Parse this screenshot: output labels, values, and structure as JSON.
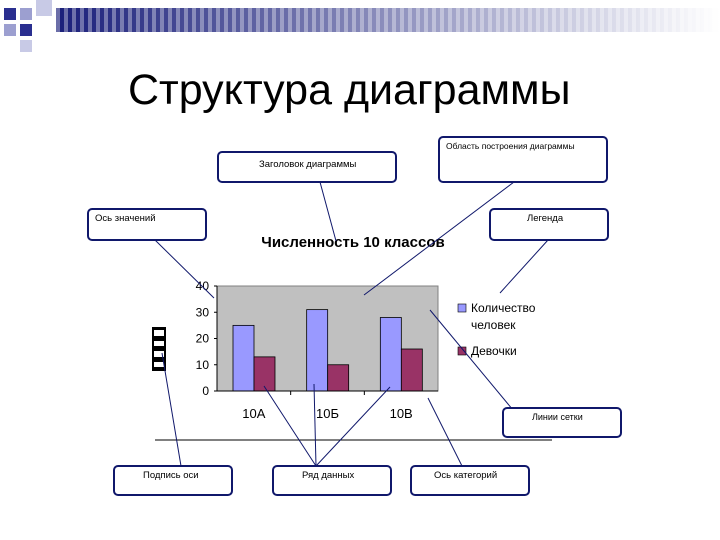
{
  "slide": {
    "title": "Структура диаграммы",
    "callouts": {
      "chart_title": "Заголовок диаграммы",
      "plot_area": "Область построения диаграммы",
      "value_axis": "Ось значений",
      "legend": "Легенда",
      "gridlines": "Линии сетки",
      "axis_title": "Подпись оси",
      "data_series": "Ряд данных",
      "category_axis": "Ось категорий"
    },
    "colors": {
      "accent_blue": "#10186b",
      "series_1": "#9999ff",
      "series_2": "#993366",
      "plot_area": "#c0c0c0"
    }
  },
  "chart_data": {
    "type": "bar",
    "title": "Численность 10 классов",
    "categories": [
      "10А",
      "10Б",
      "10В"
    ],
    "series": [
      {
        "name": "Количество человек",
        "values": [
          25,
          31,
          28
        ]
      },
      {
        "name": "Девочки",
        "values": [
          13,
          10,
          16
        ]
      }
    ],
    "ylim": [
      0,
      40
    ],
    "yticks": [
      0,
      10,
      20,
      30,
      40
    ],
    "ylabel": "",
    "grid": false,
    "legend": "right"
  }
}
